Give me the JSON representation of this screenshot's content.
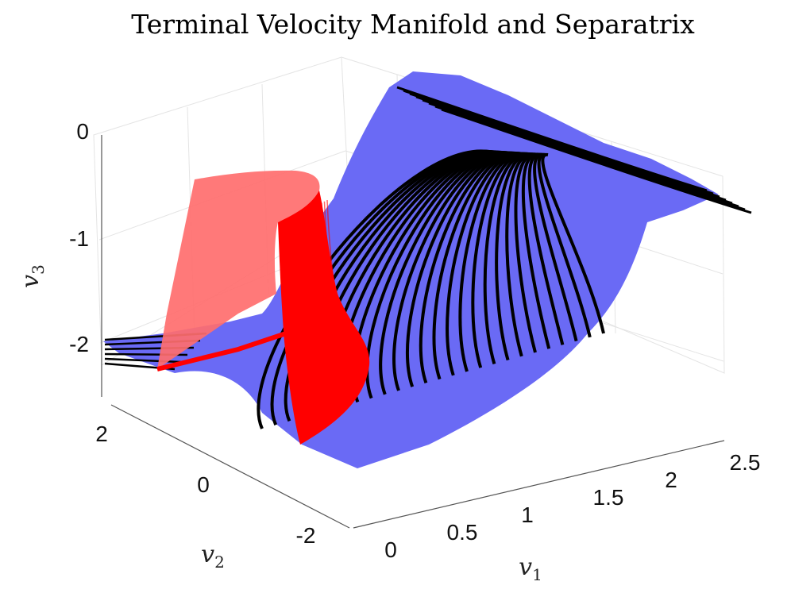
{
  "chart_data": {
    "type": "surface3d",
    "title": "Terminal Velocity Manifold and Separatrix",
    "xlabel": "v",
    "xlabel_sub": "1",
    "ylabel": "v",
    "ylabel_sub": "2",
    "zlabel": "v",
    "zlabel_sub": "3",
    "x_ticks": [
      "0",
      "0.5",
      "1",
      "1.5",
      "2",
      "2.5"
    ],
    "y_ticks": [
      "2",
      "0",
      "-2"
    ],
    "z_ticks": [
      "0",
      "-1",
      "-2"
    ],
    "xlim": [
      0,
      2.5
    ],
    "ylim": [
      -2,
      2
    ],
    "zlim": [
      -2.5,
      0
    ],
    "grid": true,
    "series": [
      {
        "name": "terminal velocity manifold",
        "kind": "surface",
        "color": "#6a6af5"
      },
      {
        "name": "trajectories",
        "kind": "curves",
        "color": "#000000",
        "count": 26
      },
      {
        "name": "separatrix",
        "kind": "surface",
        "color": "#ff0000"
      }
    ]
  }
}
